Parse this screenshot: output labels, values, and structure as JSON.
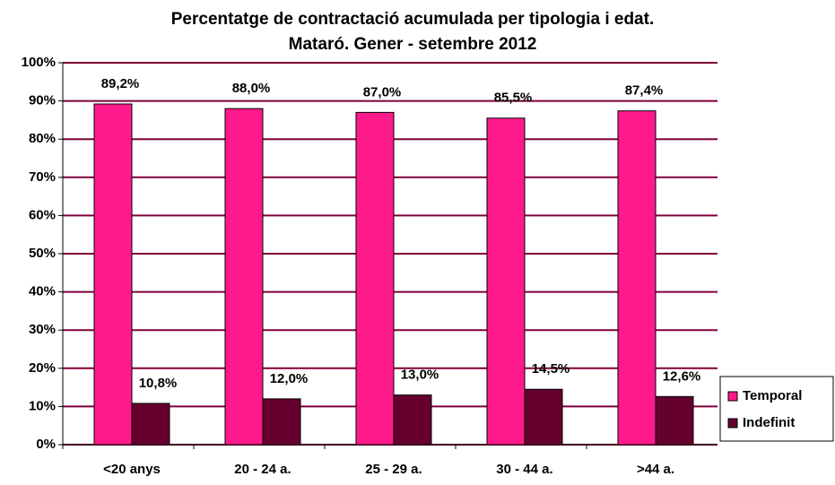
{
  "chart_data": {
    "type": "bar",
    "title": [
      "Percentatge de contractació acumulada per tipologia i edat.",
      "Mataró. Gener - setembre 2012"
    ],
    "categories": [
      "<20 anys",
      "20 - 24 a.",
      "25 - 29 a.",
      "30 - 44 a.",
      ">44 a."
    ],
    "series": [
      {
        "name": "Temporal",
        "color": "#ff1a8c",
        "values": [
          89.2,
          88.0,
          87.0,
          85.5,
          87.4
        ],
        "value_labels": [
          "89,2%",
          "88,0%",
          "87,0%",
          "85,5%",
          "87,4%"
        ]
      },
      {
        "name": "Indefinit",
        "color": "#66002e",
        "values": [
          10.8,
          12.0,
          13.0,
          14.5,
          12.6
        ],
        "value_labels": [
          "10,8%",
          "12,0%",
          "13,0%",
          "14,5%",
          "12,6%"
        ]
      }
    ],
    "ylim": [
      0,
      100
    ],
    "yticks": [
      {
        "value": 0,
        "label": "0%"
      },
      {
        "value": 10,
        "label": "10%"
      },
      {
        "value": 20,
        "label": "20%"
      },
      {
        "value": 30,
        "label": "30%"
      },
      {
        "value": 40,
        "label": "40%"
      },
      {
        "value": 50,
        "label": "50%"
      },
      {
        "value": 60,
        "label": "60%"
      },
      {
        "value": 70,
        "label": "70%"
      },
      {
        "value": 80,
        "label": "80%"
      },
      {
        "value": 90,
        "label": "90%"
      },
      {
        "value": 100,
        "label": "100%"
      }
    ],
    "grid": true,
    "legend": "right"
  }
}
